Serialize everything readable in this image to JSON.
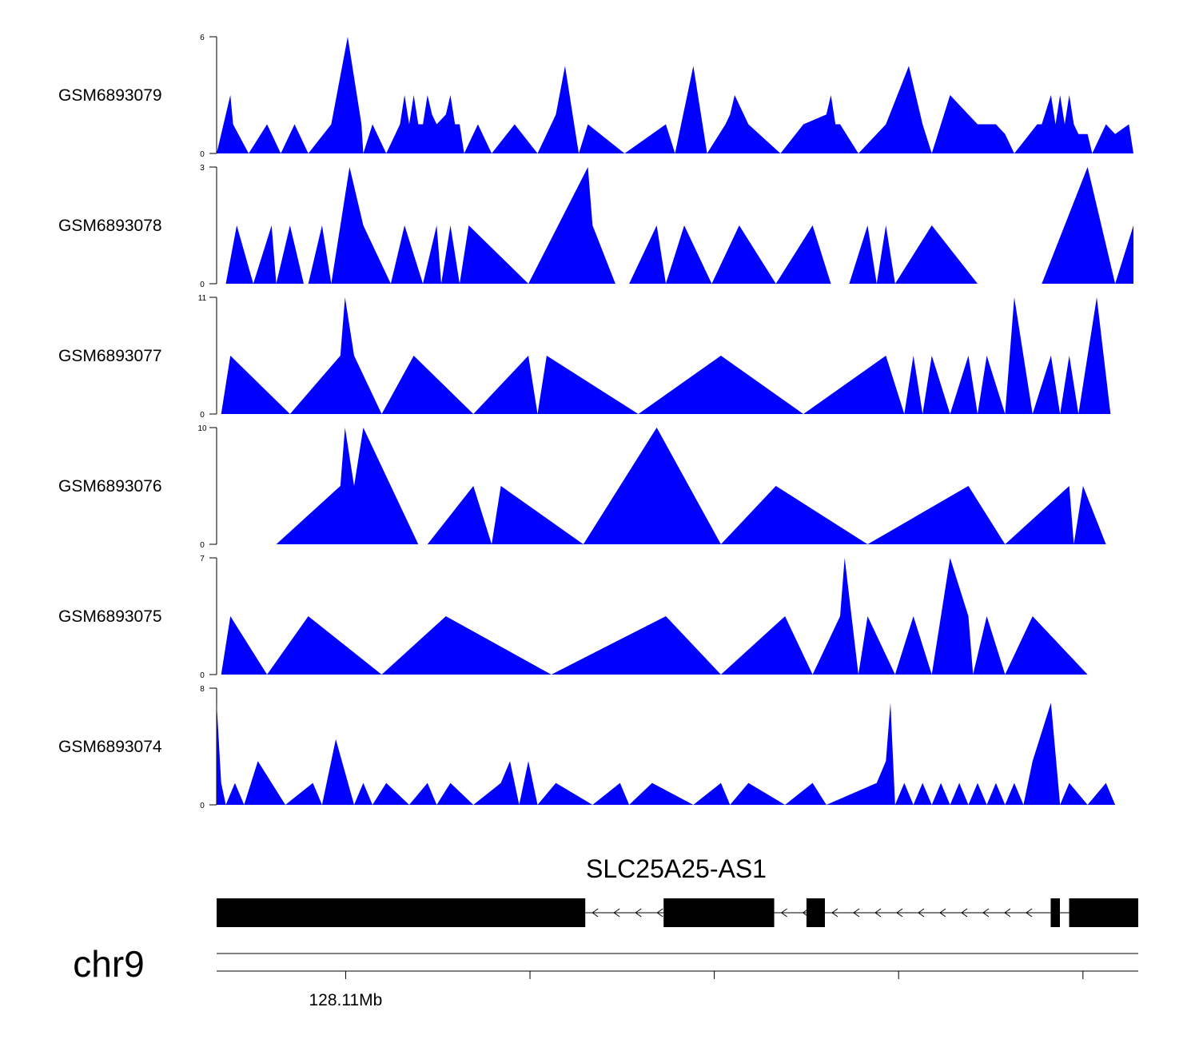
{
  "chart_data": {
    "type": "area",
    "title": "",
    "fill_color": "#0000FF",
    "gene_color": "#000000",
    "x_domain": [
      0,
      100
    ],
    "tracks": [
      {
        "name": "GSM6893079",
        "ymax": 6,
        "ymin_label": "0",
        "ymax_label": "6",
        "points": [
          [
            0,
            0
          ],
          [
            1.5,
            3
          ],
          [
            1.8,
            1.5
          ],
          [
            3.5,
            0
          ],
          [
            5.5,
            1.5
          ],
          [
            7,
            0
          ],
          [
            8.5,
            1.5
          ],
          [
            10,
            0
          ],
          [
            12.5,
            1.5
          ],
          [
            14.3,
            6
          ],
          [
            15.8,
            1.5
          ],
          [
            16,
            0
          ],
          [
            17,
            1.5
          ],
          [
            18.5,
            0
          ],
          [
            20,
            1.5
          ],
          [
            20.5,
            3
          ],
          [
            21,
            1.5
          ],
          [
            21.5,
            3
          ],
          [
            22,
            1.5
          ],
          [
            22.5,
            1.5
          ],
          [
            23,
            3
          ],
          [
            23.5,
            2
          ],
          [
            24,
            1.5
          ],
          [
            25,
            2
          ],
          [
            25.5,
            3
          ],
          [
            26,
            1.5
          ],
          [
            26.5,
            1.5
          ],
          [
            27,
            0
          ],
          [
            28.5,
            1.5
          ],
          [
            30,
            0
          ],
          [
            32.5,
            1.5
          ],
          [
            35,
            0
          ],
          [
            37,
            2
          ],
          [
            38,
            4.5
          ],
          [
            39,
            1.5
          ],
          [
            39.5,
            0
          ],
          [
            40.5,
            1.5
          ],
          [
            44.5,
            0
          ],
          [
            49,
            1.5
          ],
          [
            50,
            0
          ],
          [
            52,
            4.5
          ],
          [
            53.5,
            0
          ],
          [
            55.5,
            1.5
          ],
          [
            56,
            2
          ],
          [
            56.5,
            3
          ],
          [
            58,
            1.5
          ],
          [
            61.5,
            0
          ],
          [
            64,
            1.5
          ],
          [
            66.5,
            2
          ],
          [
            67,
            3
          ],
          [
            67.5,
            1.5
          ],
          [
            68,
            1.5
          ],
          [
            70,
            0
          ],
          [
            73,
            1.5
          ],
          [
            75.5,
            4.5
          ],
          [
            77,
            1.5
          ],
          [
            78,
            0
          ],
          [
            80,
            3
          ],
          [
            83,
            1.5
          ],
          [
            85,
            1.5
          ],
          [
            86,
            1
          ],
          [
            87,
            0
          ],
          [
            89.5,
            1.5
          ],
          [
            90,
            1.5
          ],
          [
            91,
            3
          ],
          [
            91.5,
            1.5
          ],
          [
            92,
            3
          ],
          [
            92.5,
            1.5
          ],
          [
            93,
            3
          ],
          [
            93.5,
            1.5
          ],
          [
            94,
            1
          ],
          [
            95,
            1
          ],
          [
            95.5,
            0
          ],
          [
            97,
            1.5
          ],
          [
            98,
            1
          ],
          [
            99.5,
            1.5
          ],
          [
            100,
            0
          ]
        ]
      },
      {
        "name": "GSM6893078",
        "ymax": 3,
        "ymin_label": "0",
        "ymax_label": "3",
        "points": [
          [
            1,
            0
          ],
          [
            2.2,
            1.5
          ],
          [
            4,
            0
          ],
          [
            6,
            1.5
          ],
          [
            6.5,
            0
          ],
          [
            8,
            1.5
          ],
          [
            9.5,
            0
          ],
          [
            10,
            0
          ],
          [
            11.5,
            1.5
          ],
          [
            12.5,
            0
          ],
          [
            14.5,
            3
          ],
          [
            16,
            1.5
          ],
          [
            19,
            0
          ],
          [
            20.5,
            1.5
          ],
          [
            22.5,
            0
          ],
          [
            24,
            1.5
          ],
          [
            24.5,
            0
          ],
          [
            25.5,
            1.5
          ],
          [
            26.5,
            0
          ],
          [
            27.5,
            1.5
          ],
          [
            34,
            0
          ],
          [
            40.5,
            3
          ],
          [
            41,
            1.5
          ],
          [
            43.5,
            0
          ],
          [
            45,
            0
          ],
          [
            48,
            1.5
          ],
          [
            49,
            0
          ],
          [
            51,
            1.5
          ],
          [
            54,
            0
          ],
          [
            57,
            1.5
          ],
          [
            61,
            0
          ],
          [
            65,
            1.5
          ],
          [
            67,
            0
          ],
          [
            69,
            0
          ],
          [
            71,
            1.5
          ],
          [
            72,
            0
          ],
          [
            73,
            1.5
          ],
          [
            74,
            0
          ],
          [
            78,
            1.5
          ],
          [
            83,
            0
          ],
          [
            90,
            0
          ],
          [
            95,
            3
          ],
          [
            98,
            0
          ],
          [
            100,
            1.5
          ],
          [
            100,
            0
          ]
        ]
      },
      {
        "name": "GSM6893077",
        "ymax": 11,
        "ymin_label": "0",
        "ymax_label": "11",
        "points": [
          [
            0.5,
            0
          ],
          [
            1.5,
            5.5
          ],
          [
            8,
            0
          ],
          [
            13.5,
            5.5
          ],
          [
            14,
            11
          ],
          [
            15,
            5.5
          ],
          [
            18,
            0
          ],
          [
            21.5,
            5.5
          ],
          [
            28,
            0
          ],
          [
            34,
            5.5
          ],
          [
            35,
            0
          ],
          [
            36,
            5.5
          ],
          [
            46,
            0
          ],
          [
            55,
            5.5
          ],
          [
            64,
            0
          ],
          [
            73,
            5.5
          ],
          [
            75,
            0
          ],
          [
            76,
            5.5
          ],
          [
            77,
            0
          ],
          [
            78,
            5.5
          ],
          [
            80,
            0
          ],
          [
            82,
            5.5
          ],
          [
            83,
            0
          ],
          [
            84,
            5.5
          ],
          [
            86,
            0
          ],
          [
            87,
            11
          ],
          [
            89,
            0
          ],
          [
            91,
            5.5
          ],
          [
            92,
            0
          ],
          [
            93,
            5.5
          ],
          [
            94,
            0
          ],
          [
            96,
            11
          ],
          [
            97.5,
            0
          ]
        ]
      },
      {
        "name": "GSM6893076",
        "ymax": 10,
        "ymin_label": "0",
        "ymax_label": "10",
        "points": [
          [
            6.5,
            0
          ],
          [
            13.5,
            5
          ],
          [
            14,
            10
          ],
          [
            15,
            5
          ],
          [
            16,
            10
          ],
          [
            22,
            0
          ],
          [
            23,
            0
          ],
          [
            28,
            5
          ],
          [
            30,
            0
          ],
          [
            31,
            5
          ],
          [
            40,
            0
          ],
          [
            48,
            10
          ],
          [
            55,
            0
          ],
          [
            61,
            5
          ],
          [
            71,
            0
          ],
          [
            82,
            5
          ],
          [
            86,
            0
          ],
          [
            93,
            5
          ],
          [
            93.5,
            0
          ],
          [
            94.5,
            5
          ],
          [
            97,
            0
          ]
        ]
      },
      {
        "name": "GSM6893075",
        "ymax": 7,
        "ymin_label": "0",
        "ymax_label": "7",
        "points": [
          [
            0.5,
            0
          ],
          [
            1.5,
            3.5
          ],
          [
            5.5,
            0
          ],
          [
            10,
            3.5
          ],
          [
            18,
            0
          ],
          [
            25,
            3.5
          ],
          [
            36.5,
            0
          ],
          [
            49,
            3.5
          ],
          [
            55,
            0
          ],
          [
            62,
            3.5
          ],
          [
            65,
            0
          ],
          [
            68,
            3.5
          ],
          [
            68.5,
            7
          ],
          [
            70,
            0
          ],
          [
            71,
            3.5
          ],
          [
            74,
            0
          ],
          [
            76,
            3.5
          ],
          [
            78,
            0
          ],
          [
            80,
            7
          ],
          [
            82,
            3.5
          ],
          [
            82.5,
            0
          ],
          [
            84,
            3.5
          ],
          [
            86,
            0
          ],
          [
            89,
            3.5
          ],
          [
            95,
            0
          ]
        ]
      },
      {
        "name": "GSM6893074",
        "ymax": 8,
        "ymin_label": "0",
        "ymax_label": "8",
        "points": [
          [
            0,
            7
          ],
          [
            0.5,
            1.5
          ],
          [
            1,
            0
          ],
          [
            2,
            1.5
          ],
          [
            3,
            0
          ],
          [
            4.5,
            3
          ],
          [
            7.5,
            0
          ],
          [
            10.5,
            1.5
          ],
          [
            11.5,
            0
          ],
          [
            13,
            4.5
          ],
          [
            15,
            0
          ],
          [
            16,
            1.5
          ],
          [
            17,
            0
          ],
          [
            18.5,
            1.5
          ],
          [
            21,
            0
          ],
          [
            23,
            1.5
          ],
          [
            24,
            0
          ],
          [
            25.5,
            1.5
          ],
          [
            28,
            0
          ],
          [
            31,
            1.5
          ],
          [
            32,
            3
          ],
          [
            33,
            0
          ],
          [
            34,
            3
          ],
          [
            35,
            0
          ],
          [
            37,
            1.5
          ],
          [
            41,
            0
          ],
          [
            44,
            1.5
          ],
          [
            45,
            0
          ],
          [
            47.5,
            1.5
          ],
          [
            52,
            0
          ],
          [
            55,
            1.5
          ],
          [
            56,
            0
          ],
          [
            58,
            1.5
          ],
          [
            62,
            0
          ],
          [
            65,
            1.5
          ],
          [
            66.5,
            0
          ],
          [
            72,
            1.5
          ],
          [
            73,
            3
          ],
          [
            73.5,
            7
          ],
          [
            74,
            0
          ],
          [
            75,
            1.5
          ],
          [
            76,
            0
          ],
          [
            77,
            1.5
          ],
          [
            78,
            0
          ],
          [
            79,
            1.5
          ],
          [
            80,
            0
          ],
          [
            81,
            1.5
          ],
          [
            82,
            0
          ],
          [
            83,
            1.5
          ],
          [
            84,
            0
          ],
          [
            85,
            1.5
          ],
          [
            86,
            0
          ],
          [
            87,
            1.5
          ],
          [
            88,
            0
          ],
          [
            89,
            3
          ],
          [
            91,
            7
          ],
          [
            92,
            0
          ],
          [
            93,
            1.5
          ],
          [
            95,
            0
          ],
          [
            97,
            1.5
          ],
          [
            98,
            0
          ]
        ]
      }
    ],
    "gene": {
      "name": "SLC25A25-AS1",
      "strand": "-",
      "exons": [
        [
          0,
          40
        ],
        [
          48.5,
          60.5
        ],
        [
          64,
          66
        ],
        [
          90.5,
          91.5
        ],
        [
          92.5,
          100
        ]
      ]
    },
    "chromosome": "chr9",
    "axis_ticks": [
      {
        "pos": 14,
        "label": "128.11Mb"
      },
      {
        "pos": 34,
        "label": ""
      },
      {
        "pos": 54,
        "label": ""
      },
      {
        "pos": 74,
        "label": ""
      },
      {
        "pos": 94,
        "label": ""
      }
    ]
  }
}
